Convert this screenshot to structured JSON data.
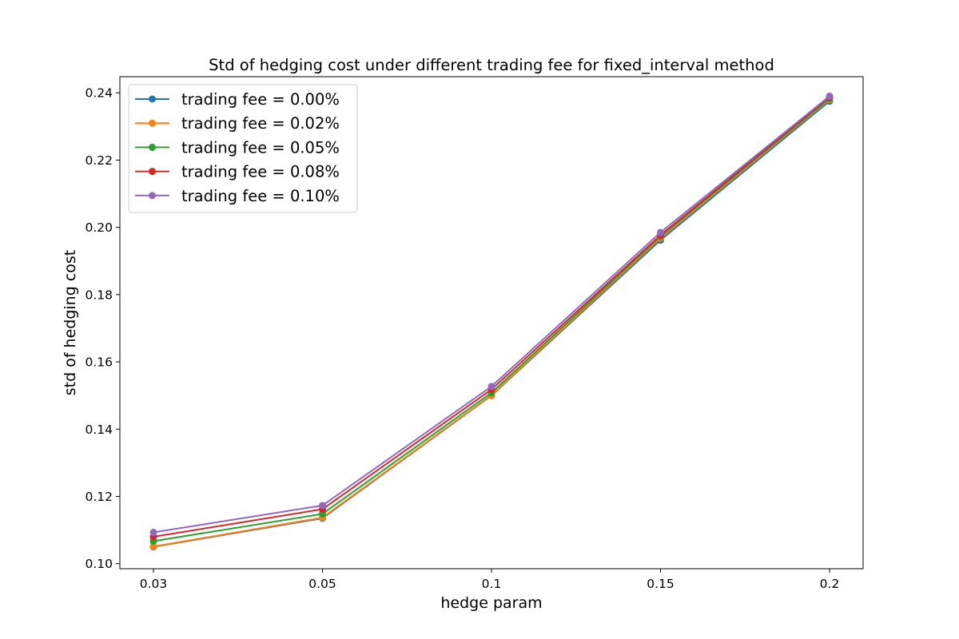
{
  "chart_data": {
    "type": "line",
    "title": "Std of hedging cost under different trading fee for fixed_interval method",
    "xlabel": "hedge param",
    "ylabel": "std of hedging cost",
    "categories": [
      "0.03",
      "0.05",
      "0.1",
      "0.15",
      "0.2"
    ],
    "y_ticks": [
      "0.10",
      "0.12",
      "0.14",
      "0.16",
      "0.18",
      "0.20",
      "0.22",
      "0.24"
    ],
    "ylim": [
      0.0985,
      0.2448
    ],
    "grid": false,
    "legend_position": "top-left",
    "series": [
      {
        "name": "trading fee = 0.00%",
        "color": "#1f77b4",
        "values": [
          0.105,
          0.1135,
          0.15,
          0.1962,
          0.2375
        ]
      },
      {
        "name": "trading fee = 0.02%",
        "color": "#ff7f0e",
        "values": [
          0.1051,
          0.1137,
          0.1501,
          0.1968,
          0.238
        ]
      },
      {
        "name": "trading fee = 0.05%",
        "color": "#2ca02c",
        "values": [
          0.1067,
          0.1148,
          0.1508,
          0.1973,
          0.2383
        ]
      },
      {
        "name": "trading fee = 0.08%",
        "color": "#d62728",
        "values": [
          0.108,
          0.1162,
          0.1518,
          0.1977,
          0.2387
        ]
      },
      {
        "name": "trading fee = 0.10%",
        "color": "#9467bd",
        "values": [
          0.1093,
          0.1173,
          0.1527,
          0.1985,
          0.239
        ]
      }
    ]
  }
}
